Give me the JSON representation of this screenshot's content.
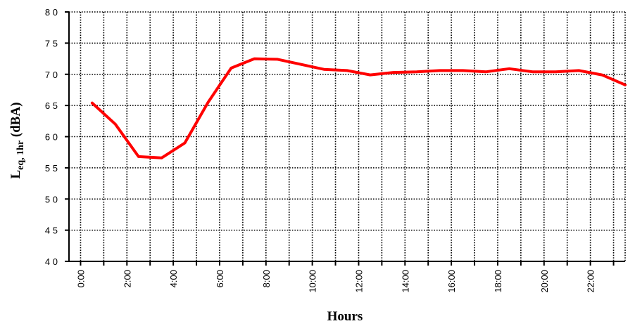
{
  "chart_data": {
    "type": "line",
    "title": "",
    "xlabel": "Hours",
    "ylabel_main": "L",
    "ylabel_sub": "eq, 1hr",
    "ylabel_rest": " (dBA)",
    "ylim": [
      40,
      80
    ],
    "yticks": [
      40,
      45,
      50,
      55,
      60,
      65,
      70,
      75,
      80
    ],
    "ytick_labels": [
      "4 0",
      "4 5",
      "5 0",
      "5 5",
      "6 0",
      "6 5",
      "7 0",
      "7 5",
      "8 0"
    ],
    "xticks": [
      0,
      2,
      4,
      6,
      8,
      10,
      12,
      14,
      16,
      18,
      20,
      22
    ],
    "xtick_labels": [
      "0:00",
      "2:00",
      "4:00",
      "6:00",
      "8:00",
      "10:00",
      "12:00",
      "14:00",
      "16:00",
      "18:00",
      "20:00",
      "22:00"
    ],
    "x_hours_min": -0.5,
    "x_hours_max": 23.5,
    "grid": true,
    "series": [
      {
        "color": "#ff0000",
        "x": [
          0.5,
          1.5,
          2.5,
          3.5,
          4.5,
          5.5,
          6.5,
          7.5,
          8.5,
          9.5,
          10.5,
          11.5,
          12.5,
          13.5,
          14.5,
          15.5,
          16.5,
          17.5,
          18.5,
          19.5,
          20.5,
          21.5,
          22.5,
          23.5
        ],
        "values": [
          65.4,
          62.0,
          56.8,
          56.6,
          59.0,
          65.5,
          71.0,
          72.5,
          72.4,
          71.6,
          70.8,
          70.6,
          69.9,
          70.3,
          70.4,
          70.6,
          70.6,
          70.4,
          70.9,
          70.4,
          70.4,
          70.6,
          69.9,
          68.3
        ]
      }
    ]
  }
}
